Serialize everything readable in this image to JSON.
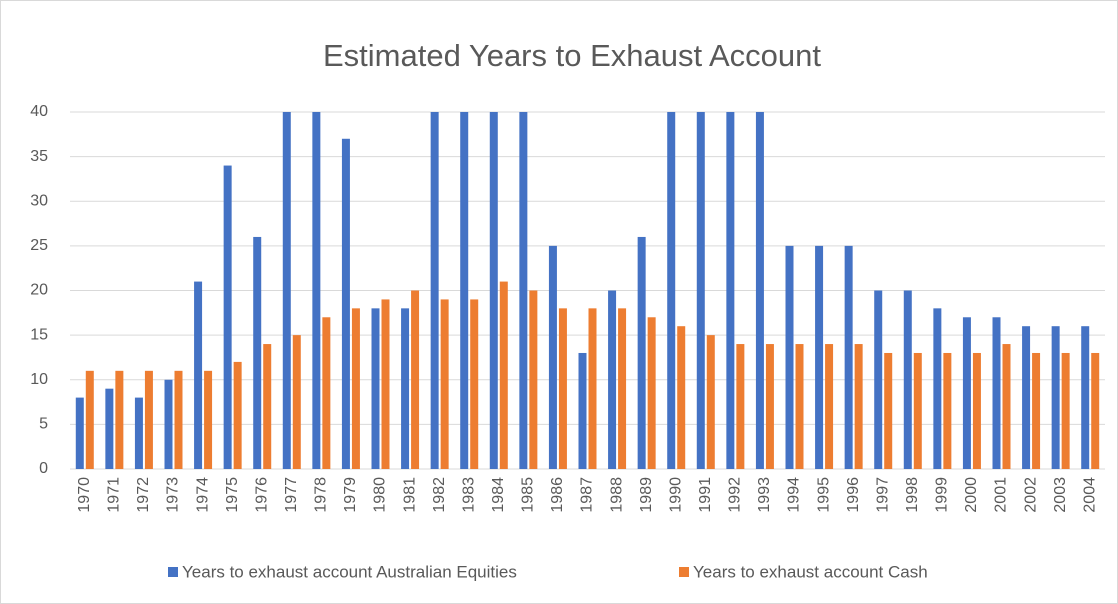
{
  "chart_data": {
    "type": "bar",
    "title": "Estimated Years to Exhaust Account",
    "categories": [
      "1970",
      "1971",
      "1972",
      "1973",
      "1974",
      "1975",
      "1976",
      "1977",
      "1978",
      "1979",
      "1980",
      "1981",
      "1982",
      "1983",
      "1984",
      "1985",
      "1986",
      "1987",
      "1988",
      "1989",
      "1990",
      "1991",
      "1992",
      "1993",
      "1994",
      "1995",
      "1996",
      "1997",
      "1998",
      "1999",
      "2000",
      "2001",
      "2002",
      "2003",
      "2004"
    ],
    "series": [
      {
        "name": "Years to exhaust account Australian Equities",
        "color": "#4472c4",
        "values": [
          8,
          9,
          8,
          10,
          21,
          34,
          26,
          40,
          40,
          37,
          18,
          18,
          40,
          40,
          40,
          40,
          25,
          13,
          20,
          26,
          40,
          40,
          40,
          40,
          25,
          25,
          25,
          20,
          20,
          18,
          17,
          17,
          16,
          16,
          16
        ]
      },
      {
        "name": "Years to exhaust account Cash",
        "color": "#ed7d31",
        "values": [
          11,
          11,
          11,
          11,
          11,
          12,
          14,
          15,
          17,
          18,
          19,
          20,
          19,
          19,
          21,
          20,
          18,
          18,
          18,
          17,
          16,
          15,
          14,
          14,
          14,
          14,
          14,
          13,
          13,
          13,
          13,
          14,
          13,
          13,
          13
        ]
      }
    ],
    "ylim": [
      0,
      40
    ],
    "yticks": [
      0,
      5,
      10,
      15,
      20,
      25,
      30,
      35,
      40
    ],
    "grid": true,
    "legend": "bottom"
  }
}
